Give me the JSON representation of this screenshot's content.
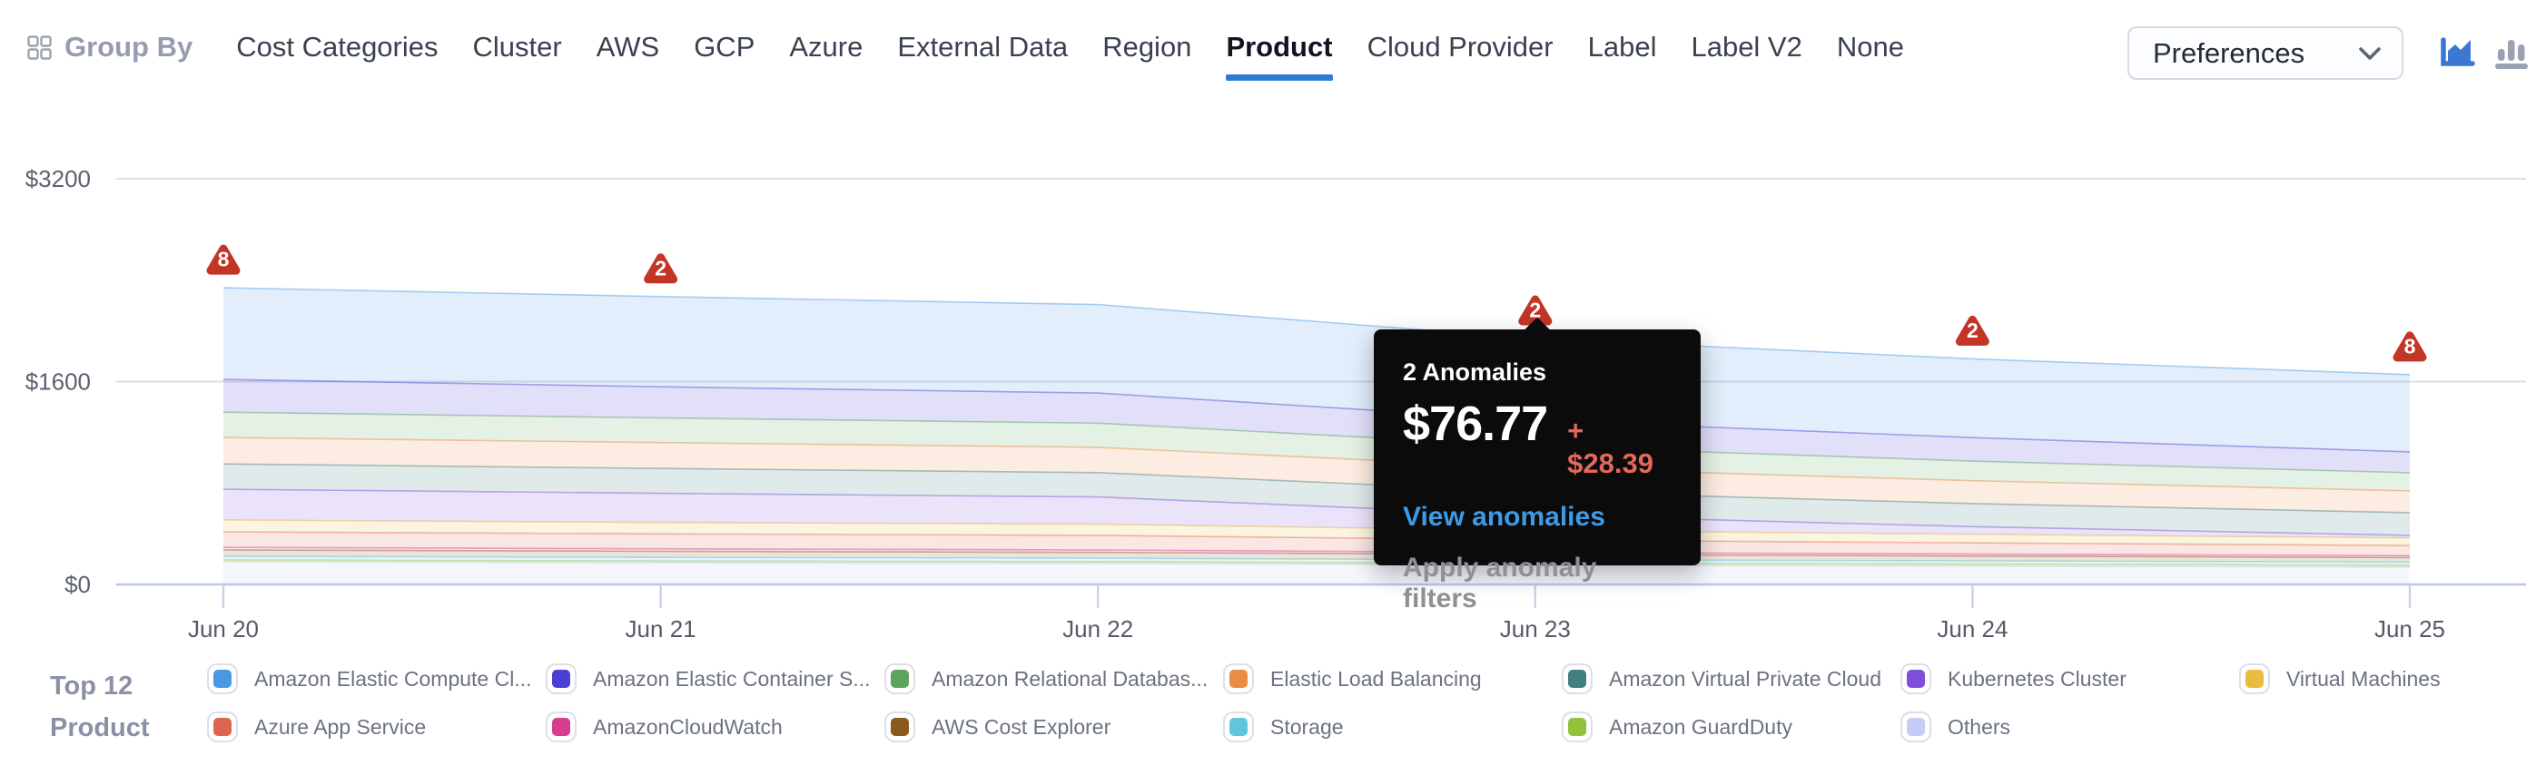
{
  "nav": {
    "group_by_label": "Group By",
    "tabs": [
      {
        "label": "Cost Categories",
        "active": false
      },
      {
        "label": "Cluster",
        "active": false
      },
      {
        "label": "AWS",
        "active": false
      },
      {
        "label": "GCP",
        "active": false
      },
      {
        "label": "Azure",
        "active": false
      },
      {
        "label": "External Data",
        "active": false
      },
      {
        "label": "Region",
        "active": false
      },
      {
        "label": "Product",
        "active": true
      },
      {
        "label": "Cloud Provider",
        "active": false
      },
      {
        "label": "Label",
        "active": false
      },
      {
        "label": "Label V2",
        "active": false
      },
      {
        "label": "None",
        "active": false
      }
    ],
    "preferences_label": "Preferences",
    "accent_color": "#2e7cd6",
    "icons": {
      "area_chart_icon_color": "#3a78d3",
      "bar_chart_icon_color": "#9ba1b3"
    }
  },
  "tooltip": {
    "title": "2 Anomalies",
    "amount": "$76.77",
    "delta": "+ $28.39",
    "link": "View anomalies",
    "secondary": "Apply anomaly filters",
    "delta_color": "#e2685a",
    "link_color": "#3e9ae6"
  },
  "legend": {
    "title_line1": "Top 12",
    "title_line2": "Product"
  },
  "chart_data": {
    "type": "area",
    "stacked": true,
    "x": [
      "Jun 20",
      "Jun 21",
      "Jun 22",
      "Jun 23",
      "Jun 24",
      "Jun 25"
    ],
    "y_ticks": [
      {
        "value": 0,
        "label": "$0"
      },
      {
        "value": 1600,
        "label": "$1600"
      },
      {
        "value": 3200,
        "label": "$3200"
      }
    ],
    "ylim": [
      0,
      3200
    ],
    "grid": true,
    "legend_position": "bottom",
    "series": [
      {
        "name": "Amazon Elastic Compute Cl...",
        "color": "#4a97e4",
        "values": [
          723,
          712,
          698,
          645,
          622,
          609
        ]
      },
      {
        "name": "Amazon Elastic Container S...",
        "color": "#4b3fd6",
        "values": [
          258,
          245,
          238,
          205,
          185,
          165
        ]
      },
      {
        "name": "Amazon Relational Databas...",
        "color": "#5ba55b",
        "values": [
          200,
          195,
          190,
          170,
          155,
          143
        ]
      },
      {
        "name": "Elastic Load Balancing",
        "color": "#eb8b44",
        "values": [
          208,
          204,
          200,
          188,
          180,
          172
        ]
      },
      {
        "name": "Amazon Virtual Private Cloud",
        "color": "#3f7f80",
        "values": [
          200,
          196,
          192,
          186,
          182,
          179
        ]
      },
      {
        "name": "Kubernetes Cluster",
        "color": "#7e4fd8",
        "values": [
          243,
          230,
          215,
          120,
          60,
          20
        ]
      },
      {
        "name": "Virtual Machines",
        "color": "#e9bc3f",
        "values": [
          93,
          90,
          88,
          75,
          68,
          60
        ]
      },
      {
        "name": "Azure App Service",
        "color": "#df6551",
        "values": [
          122,
          118,
          115,
          98,
          88,
          80
        ]
      },
      {
        "name": "AmazonCloudWatch",
        "color": "#d93d8f",
        "values": [
          21,
          20,
          19,
          17,
          16,
          15
        ]
      },
      {
        "name": "AWS Cost Explorer",
        "color": "#8a5a1d",
        "values": [
          50,
          48,
          46,
          42,
          38,
          35
        ]
      },
      {
        "name": "Storage",
        "color": "#5ec7dc",
        "values": [
          29,
          28,
          27,
          26,
          26,
          25
        ]
      },
      {
        "name": "Amazon GuardDuty",
        "color": "#94c13c",
        "values": [
          14,
          15,
          15,
          16,
          16,
          16
        ]
      },
      {
        "name": "Others",
        "color": "#c6ccf7",
        "values": [
          179,
          170,
          165,
          152,
          144,
          136
        ]
      }
    ],
    "anomalies": [
      {
        "x": "Jun 20",
        "count": 8
      },
      {
        "x": "Jun 21",
        "count": 2
      },
      {
        "x": "Jun 23",
        "count": 2
      },
      {
        "x": "Jun 24",
        "count": 2
      },
      {
        "x": "Jun 25",
        "count": 8
      }
    ],
    "anomaly_color": "#c23527"
  }
}
